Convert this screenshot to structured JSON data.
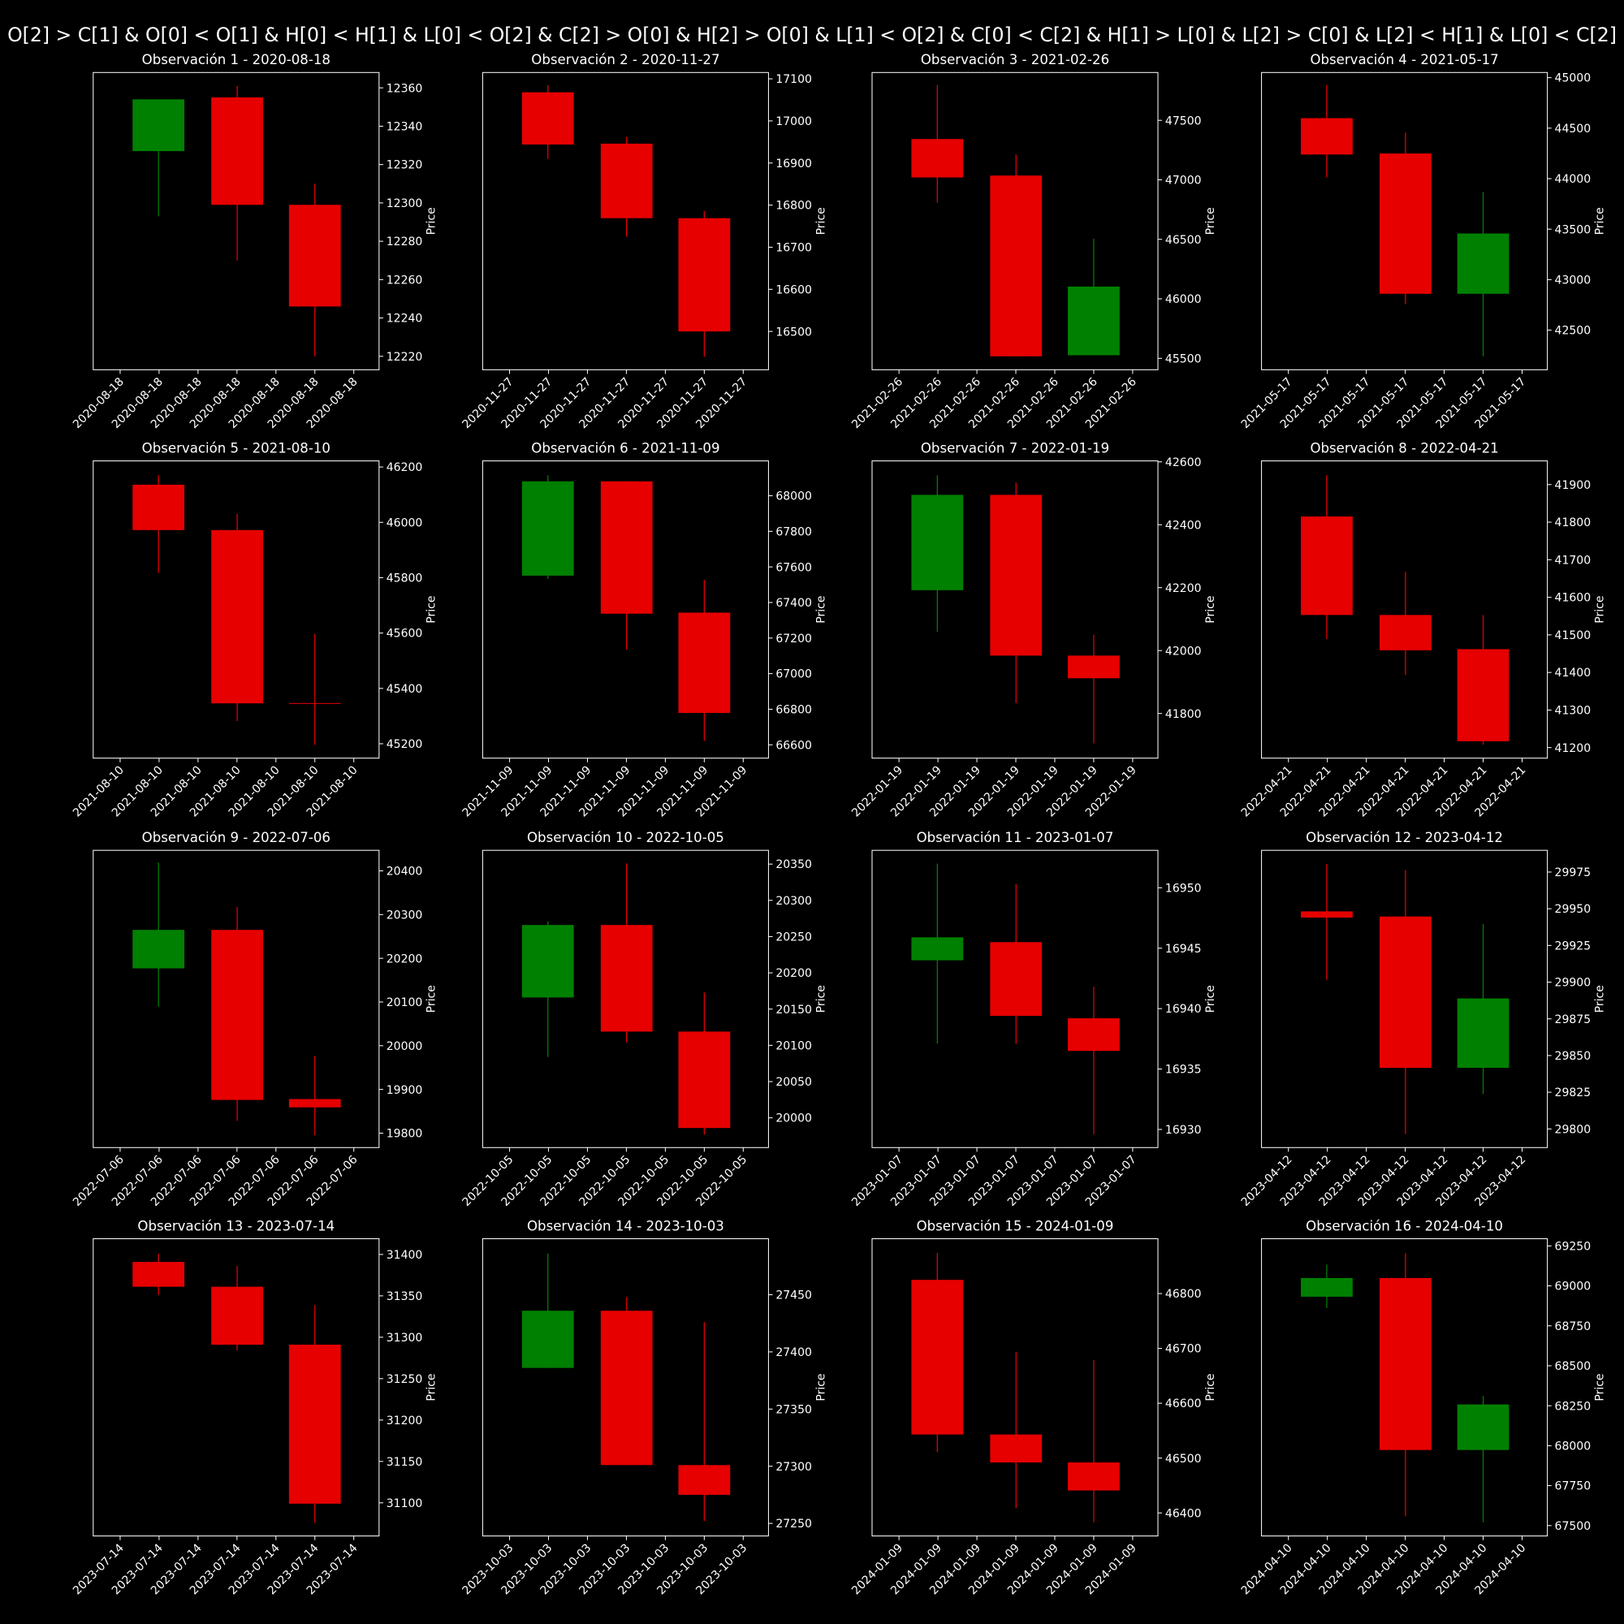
{
  "suptitle": "O[2] > C[1] & O[0] < O[1] & H[0] < H[1] & L[0] < O[2] & C[2] > O[0] & H[2] > O[0] & L[1] < O[2] & C[0] < C[2] & H[1] > L[0] & L[2] > C[0] & L[2] < H[1] & L[0] < C[2]",
  "chart_data": [
    {
      "type": "candlestick",
      "title": "Observación 1 - 2020-08-18",
      "ylabel": "Price",
      "up_color": "#008000",
      "down_color": "#e60000",
      "x_tick_labels": [
        "2020-08-18",
        "2020-08-18",
        "2020-08-18",
        "2020-08-18",
        "2020-08-18",
        "2020-08-18",
        "2020-08-18"
      ],
      "open": [
        12327,
        12355,
        12299
      ],
      "high": [
        12354,
        12361,
        12310
      ],
      "low": [
        12293,
        12270,
        12220
      ],
      "close": [
        12354,
        12299,
        12246
      ],
      "ylim": [
        12213,
        12368
      ],
      "yticks": [
        12220,
        12240,
        12260,
        12280,
        12300,
        12320,
        12340,
        12360
      ]
    },
    {
      "type": "candlestick",
      "title": "Observación 2 - 2020-11-27",
      "ylabel": "Price",
      "up_color": "#008000",
      "down_color": "#e60000",
      "x_tick_labels": [
        "2020-11-27",
        "2020-11-27",
        "2020-11-27",
        "2020-11-27",
        "2020-11-27",
        "2020-11-27",
        "2020-11-27"
      ],
      "open": [
        17068,
        16946,
        16769
      ],
      "high": [
        17085,
        16962,
        16786
      ],
      "low": [
        16910,
        16725,
        16440
      ],
      "close": [
        16944,
        16769,
        16500
      ],
      "ylim": [
        16409,
        17115
      ],
      "yticks": [
        16500,
        16600,
        16700,
        16800,
        16900,
        17000,
        17100
      ]
    },
    {
      "type": "candlestick",
      "title": "Observación 3 - 2021-02-26",
      "ylabel": "Price",
      "up_color": "#008000",
      "down_color": "#e60000",
      "x_tick_labels": [
        "2021-02-26",
        "2021-02-26",
        "2021-02-26",
        "2021-02-26",
        "2021-02-26",
        "2021-02-26",
        "2021-02-26"
      ],
      "open": [
        47343,
        47036,
        45526
      ],
      "high": [
        47797,
        47212,
        46504
      ],
      "low": [
        46810,
        45517,
        45526
      ],
      "close": [
        47020,
        45517,
        46103
      ],
      "ylim": [
        45404,
        47902
      ],
      "yticks": [
        45500,
        46000,
        46500,
        47000,
        47500
      ]
    },
    {
      "type": "candlestick",
      "title": "Observación 4 - 2021-05-17",
      "ylabel": "Price",
      "up_color": "#008000",
      "down_color": "#e60000",
      "x_tick_labels": [
        "2021-05-17",
        "2021-05-17",
        "2021-05-17",
        "2021-05-17",
        "2021-05-17",
        "2021-05-17",
        "2021-05-17"
      ],
      "open": [
        44599,
        44249,
        42860
      ],
      "high": [
        44928,
        44455,
        43868
      ],
      "low": [
        44012,
        42757,
        42242
      ],
      "close": [
        44239,
        42860,
        43457
      ],
      "ylim": [
        42108,
        45051
      ],
      "yticks": [
        42500,
        43000,
        43500,
        44000,
        44500,
        45000
      ]
    },
    {
      "type": "candlestick",
      "title": "Observación 5 - 2021-08-10",
      "ylabel": "Price",
      "up_color": "#008000",
      "down_color": "#e60000",
      "x_tick_labels": [
        "2021-08-10",
        "2021-08-10",
        "2021-08-10",
        "2021-08-10",
        "2021-08-10",
        "2021-08-10",
        "2021-08-10"
      ],
      "open": [
        46136,
        45972,
        45347
      ],
      "high": [
        46170,
        46031,
        45597
      ],
      "low": [
        45818,
        45282,
        45196
      ],
      "close": [
        45972,
        45346,
        45345
      ],
      "ylim": [
        45148,
        46222
      ],
      "yticks": [
        45200,
        45400,
        45600,
        45800,
        46000,
        46200
      ]
    },
    {
      "type": "candlestick",
      "title": "Observación 6 - 2021-11-09",
      "ylabel": "Price",
      "up_color": "#008000",
      "down_color": "#e60000",
      "x_tick_labels": [
        "2021-11-09",
        "2021-11-09",
        "2021-11-09",
        "2021-11-09",
        "2021-11-09",
        "2021-11-09",
        "2021-11-09"
      ],
      "open": [
        67551,
        68081,
        67343
      ],
      "high": [
        68115,
        68081,
        67528
      ],
      "low": [
        67533,
        67136,
        66623
      ],
      "close": [
        68081,
        67337,
        66779
      ],
      "ylim": [
        66525,
        68196
      ],
      "yticks": [
        66600,
        66800,
        67000,
        67200,
        67400,
        67600,
        67800,
        68000
      ]
    },
    {
      "type": "candlestick",
      "title": "Observación 7 - 2022-01-19",
      "ylabel": "Price",
      "up_color": "#008000",
      "down_color": "#e60000",
      "x_tick_labels": [
        "2022-01-19",
        "2022-01-19",
        "2022-01-19",
        "2022-01-19",
        "2022-01-19",
        "2022-01-19",
        "2022-01-19"
      ],
      "open": [
        42192,
        42495,
        41984
      ],
      "high": [
        42557,
        42534,
        42050
      ],
      "low": [
        42060,
        41833,
        41705
      ],
      "close": [
        42495,
        41984,
        41912
      ],
      "ylim": [
        41658,
        42603
      ],
      "yticks": [
        41800,
        42000,
        42200,
        42400,
        42600
      ]
    },
    {
      "type": "candlestick",
      "title": "Observación 8 - 2022-04-21",
      "ylabel": "Price",
      "up_color": "#008000",
      "down_color": "#e60000",
      "x_tick_labels": [
        "2022-04-21",
        "2022-04-21",
        "2022-04-21",
        "2022-04-21",
        "2022-04-21",
        "2022-04-21",
        "2022-04-21"
      ],
      "open": [
        41815,
        41553,
        41462
      ],
      "high": [
        41925,
        41668,
        41553
      ],
      "low": [
        41489,
        41393,
        41208
      ],
      "close": [
        41553,
        41459,
        41217
      ],
      "ylim": [
        41172,
        41963
      ],
      "yticks": [
        41200,
        41300,
        41400,
        41500,
        41600,
        41700,
        41800,
        41900
      ]
    },
    {
      "type": "candlestick",
      "title": "Observación 9 - 2022-07-06",
      "ylabel": "Price",
      "up_color": "#008000",
      "down_color": "#e60000",
      "x_tick_labels": [
        "2022-07-06",
        "2022-07-06",
        "2022-07-06",
        "2022-07-06",
        "2022-07-06",
        "2022-07-06",
        "2022-07-06"
      ],
      "open": [
        20177,
        20265,
        19878
      ],
      "high": [
        20419,
        20317,
        19977
      ],
      "low": [
        20089,
        19828,
        19795
      ],
      "close": [
        20265,
        19876,
        19859
      ],
      "ylim": [
        19767,
        20447
      ],
      "yticks": [
        19800,
        19900,
        20000,
        20100,
        20200,
        20300,
        20400
      ]
    },
    {
      "type": "candlestick",
      "title": "Observación 10 - 2022-10-05",
      "ylabel": "Price",
      "up_color": "#008000",
      "down_color": "#e60000",
      "x_tick_labels": [
        "2022-10-05",
        "2022-10-05",
        "2022-10-05",
        "2022-10-05",
        "2022-10-05",
        "2022-10-05",
        "2022-10-05"
      ],
      "open": [
        20166,
        20266,
        20119
      ],
      "high": [
        20271,
        20351,
        20173
      ],
      "low": [
        20084,
        20104,
        19977
      ],
      "close": [
        20266,
        20119,
        19986
      ],
      "ylim": [
        19959,
        20369
      ],
      "yticks": [
        20000,
        20050,
        20100,
        20150,
        20200,
        20250,
        20300,
        20350
      ]
    },
    {
      "type": "candlestick",
      "title": "Observación 11 - 2023-01-07",
      "ylabel": "Price",
      "up_color": "#008000",
      "down_color": "#e60000",
      "x_tick_labels": [
        "2023-01-07",
        "2023-01-07",
        "2023-01-07",
        "2023-01-07",
        "2023-01-07",
        "2023-01-07",
        "2023-01-07"
      ],
      "open": [
        16944.0,
        16945.5,
        16939.2
      ],
      "high": [
        16952.0,
        16950.3,
        16941.8
      ],
      "low": [
        16937.1,
        16937.1,
        16929.6
      ],
      "close": [
        16945.9,
        16939.4,
        16936.5
      ],
      "ylim": [
        16928.5,
        16953.1
      ],
      "yticks": [
        16930,
        16935,
        16940,
        16945,
        16950
      ]
    },
    {
      "type": "candlestick",
      "title": "Observación 12 - 2023-04-12",
      "ylabel": "Price",
      "up_color": "#008000",
      "down_color": "#e60000",
      "x_tick_labels": [
        "2023-04-12",
        "2023-04-12",
        "2023-04-12",
        "2023-04-12",
        "2023-04-12",
        "2023-04-12",
        "2023-04-12"
      ],
      "open": [
        29948.2,
        29944.7,
        29841.6
      ],
      "high": [
        29980.6,
        29976.4,
        29939.5
      ],
      "low": [
        29901.6,
        29796.5,
        29823.8
      ],
      "close": [
        29944.0,
        29841.6,
        29888.9
      ],
      "ylim": [
        29787.3,
        29989.8
      ],
      "yticks": [
        29800,
        29825,
        29850,
        29875,
        29900,
        29925,
        29950,
        29975
      ]
    },
    {
      "type": "candlestick",
      "title": "Observación 13 - 2023-07-14",
      "ylabel": "Price",
      "up_color": "#008000",
      "down_color": "#e60000",
      "x_tick_labels": [
        "2023-07-14",
        "2023-07-14",
        "2023-07-14",
        "2023-07-14",
        "2023-07-14",
        "2023-07-14",
        "2023-07-14"
      ],
      "open": [
        31391,
        31361,
        31291
      ],
      "high": [
        31401,
        31386,
        31339
      ],
      "low": [
        31351,
        31284,
        31076
      ],
      "close": [
        31361,
        31291,
        31099
      ],
      "ylim": [
        31060,
        31419
      ],
      "yticks": [
        31100,
        31150,
        31200,
        31250,
        31300,
        31350,
        31400
      ]
    },
    {
      "type": "candlestick",
      "title": "Observación 14 - 2023-10-03",
      "ylabel": "Price",
      "up_color": "#008000",
      "down_color": "#e60000",
      "x_tick_labels": [
        "2023-10-03",
        "2023-10-03",
        "2023-10-03",
        "2023-10-03",
        "2023-10-03",
        "2023-10-03",
        "2023-10-03"
      ],
      "open": [
        27386,
        27436,
        27301
      ],
      "high": [
        27486,
        27448,
        27426
      ],
      "low": [
        27386,
        27301,
        27252
      ],
      "close": [
        27436,
        27301,
        27275
      ],
      "ylim": [
        27239,
        27499
      ],
      "yticks": [
        27250,
        27300,
        27350,
        27400,
        27450
      ]
    },
    {
      "type": "candlestick",
      "title": "Observación 15 - 2024-01-09",
      "ylabel": "Price",
      "up_color": "#008000",
      "down_color": "#e60000",
      "x_tick_labels": [
        "2024-01-09",
        "2024-01-09",
        "2024-01-09",
        "2024-01-09",
        "2024-01-09",
        "2024-01-09",
        "2024-01-09"
      ],
      "open": [
        46825,
        46543,
        46492
      ],
      "high": [
        46874,
        46694,
        46679
      ],
      "low": [
        46511,
        46409,
        46383
      ],
      "close": [
        46543,
        46492,
        46441
      ],
      "ylim": [
        46358,
        46900
      ],
      "yticks": [
        46400,
        46500,
        46600,
        46700,
        46800
      ]
    },
    {
      "type": "candlestick",
      "title": "Observación 16 - 2024-04-10",
      "ylabel": "Price",
      "up_color": "#008000",
      "down_color": "#e60000",
      "x_tick_labels": [
        "2024-04-10",
        "2024-04-10",
        "2024-04-10",
        "2024-04-10",
        "2024-04-10",
        "2024-04-10",
        "2024-04-10"
      ],
      "open": [
        68932,
        69049,
        67973
      ],
      "high": [
        69133,
        69205,
        68310
      ],
      "low": [
        68861,
        67558,
        67520
      ],
      "close": [
        69049,
        67973,
        68258
      ],
      "ylim": [
        67435,
        69295
      ],
      "yticks": [
        67500,
        67750,
        68000,
        68250,
        68500,
        68750,
        69000,
        69250
      ]
    }
  ]
}
